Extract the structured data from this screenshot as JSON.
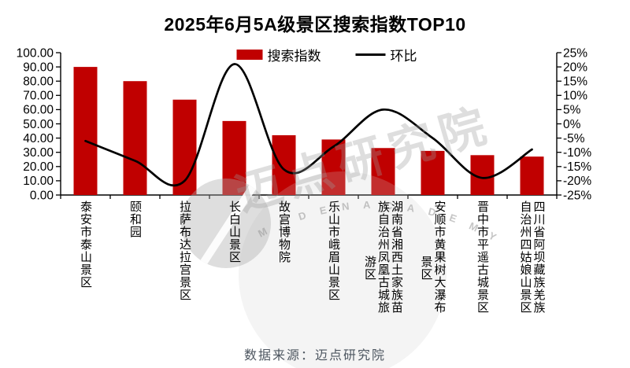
{
  "title": "2025年6月5A级景区搜索指数TOP10",
  "legend": {
    "bar_label": "搜索指数",
    "line_label": "环比"
  },
  "source_note": "数据来源：迈点研究院",
  "watermark": {
    "zh_text": "迈点研究院",
    "arc_letters": [
      "M",
      "A",
      "D",
      "E",
      "N",
      "A",
      "C",
      "A",
      "D",
      "E",
      "M",
      "Y"
    ]
  },
  "colors": {
    "bar": "#C00000",
    "line": "#000000",
    "axis_text": "#000000",
    "title_text": "#000000",
    "source_text": "#4d5660",
    "watermark_gray": "#9b9b9b"
  },
  "chart_data": {
    "type": "combo",
    "title": "2025年6月5A级景区搜索指数TOP10",
    "categories": [
      "泰安市泰山景区",
      "颐和园",
      "拉萨布达拉宫景区",
      "长白山景区",
      "故宫博物院",
      "乐山市峨眉山景区",
      "湖南省湘西土家族苗族自治州凤凰古城旅游区",
      "安顺市黄果树大瀑布景区",
      "晋中市平遥古城景区",
      "四川省阿坝藏族羌族自治州四姑娘山景区"
    ],
    "categories_wrapped": [
      [
        "泰安市泰山景区"
      ],
      [
        "颐和园"
      ],
      [
        "拉萨布达拉宫景区"
      ],
      [
        "长白山景区"
      ],
      [
        "故宫博物院"
      ],
      [
        "乐山市峨眉山景区"
      ],
      [
        "湖南省湘西土家族苗",
        "族自治州凤凰古城旅",
        "游区"
      ],
      [
        "安顺市黄果树大瀑布",
        "景区"
      ],
      [
        "晋中市平遥古城景区"
      ],
      [
        "四川省阿坝藏族羌族",
        "自治州四姑娘山景区"
      ]
    ],
    "series": [
      {
        "name": "搜索指数",
        "type": "bar",
        "axis": "left",
        "color": "#C00000",
        "values": [
          90,
          80,
          67,
          52,
          42,
          39,
          33,
          31,
          28,
          27
        ]
      },
      {
        "name": "环比",
        "type": "line",
        "axis": "right",
        "color": "#000000",
        "values_pct": [
          -6,
          -13,
          -20,
          21,
          -16,
          -8,
          5,
          -5,
          -19,
          -9
        ]
      }
    ],
    "left_axis": {
      "min": 0,
      "max": 100,
      "step": 10,
      "ticks": [
        "0.00",
        "10.00",
        "20.00",
        "30.00",
        "40.00",
        "50.00",
        "60.00",
        "70.00",
        "80.00",
        "90.00",
        "100.00"
      ]
    },
    "right_axis": {
      "min": -25,
      "max": 25,
      "step": 5,
      "unit": "%",
      "ticks": [
        "-25%",
        "-20%",
        "-15%",
        "-10%",
        "-5%",
        "0%",
        "5%",
        "10%",
        "15%",
        "20%",
        "25%"
      ]
    },
    "grid": false,
    "legend_position": "top-center"
  }
}
